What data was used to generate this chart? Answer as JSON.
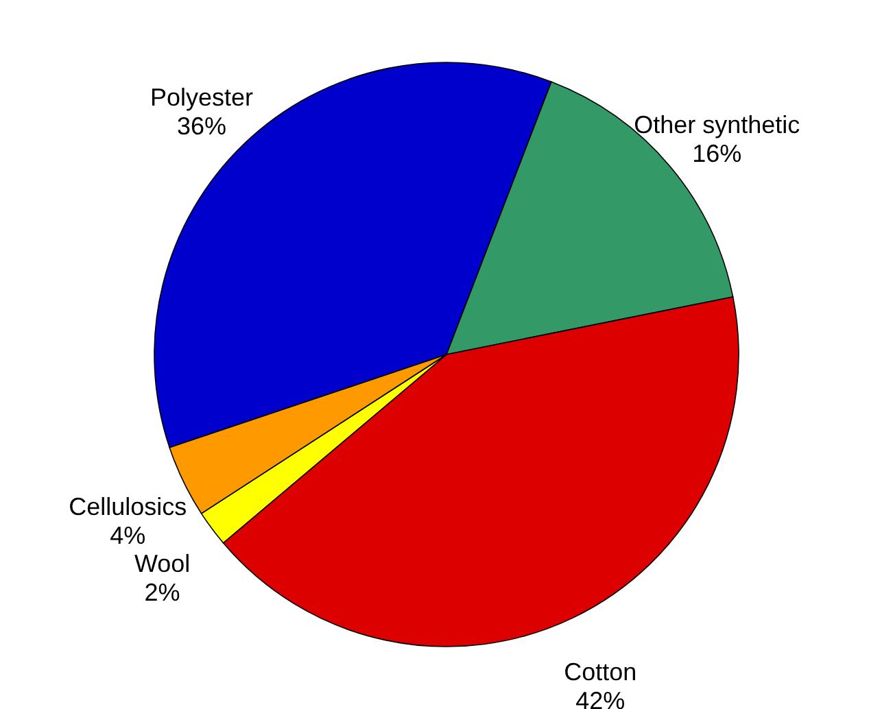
{
  "chart_data": {
    "type": "pie",
    "categories": [
      "Polyester",
      "Other synthetic",
      "Cotton",
      "Wool",
      "Cellulosics"
    ],
    "values": [
      36,
      16,
      42,
      2,
      4
    ],
    "colors": [
      "#0000cc",
      "#339966",
      "#dd0000",
      "#ffff00",
      "#ff9900"
    ],
    "value_labels": [
      "36%",
      "16%",
      "42%",
      "2%",
      "4%"
    ]
  }
}
